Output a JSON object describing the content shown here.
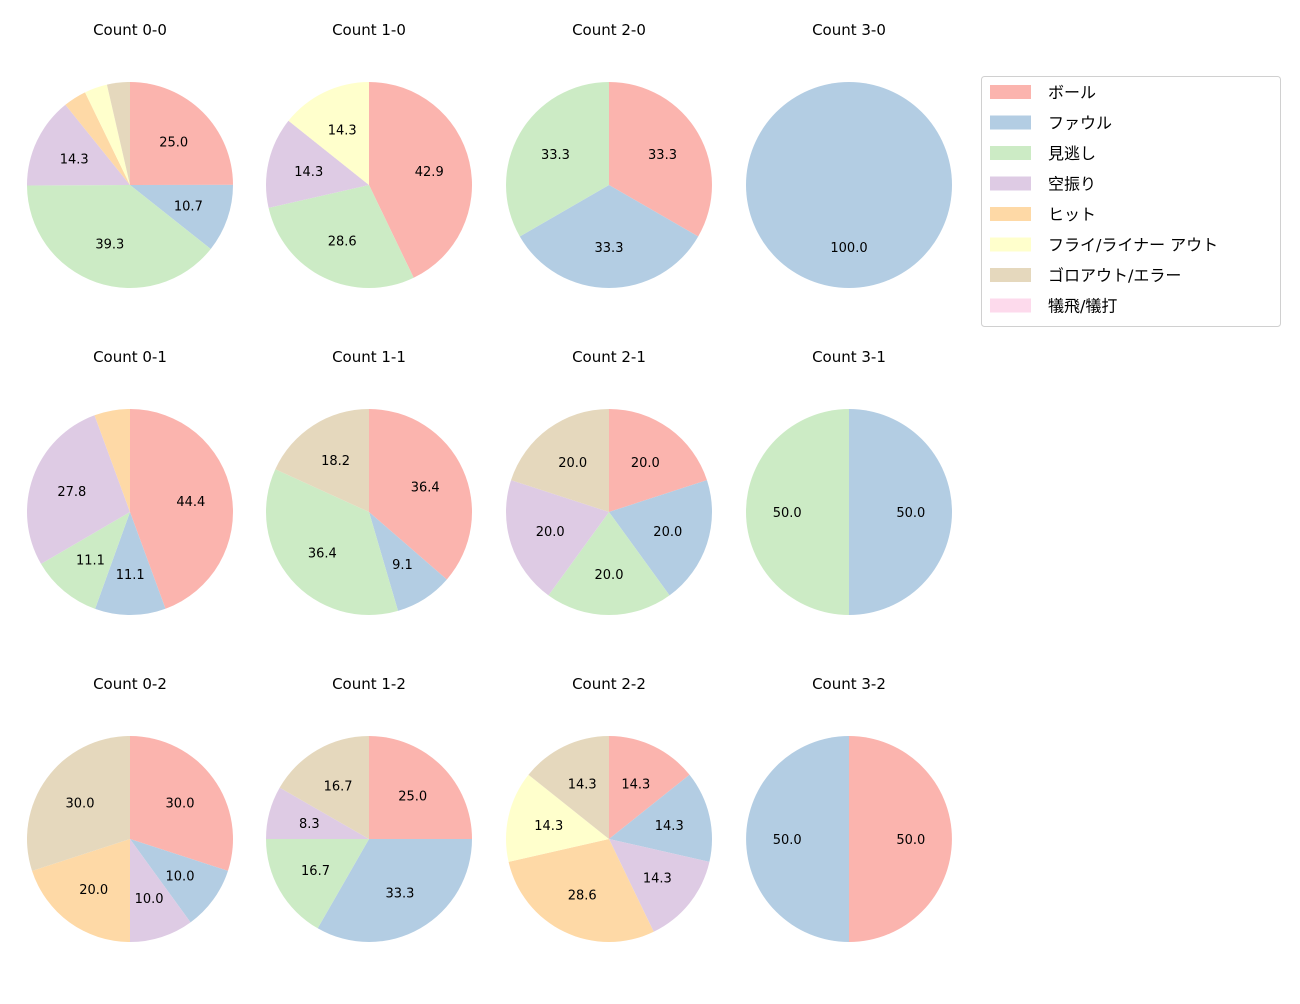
{
  "chart_data": {
    "type": "pie",
    "start_angle": 90,
    "direction": "clockwise",
    "legend": {
      "placement": "top-right",
      "entries": [
        "ボール",
        "ファウル",
        "見逃し",
        "空振り",
        "ヒット",
        "フライ/ライナー アウト",
        "ゴロアウト/エラー",
        "犠飛/犠打"
      ],
      "colors": [
        "#fbb4ae",
        "#b3cde3",
        "#ccebc5",
        "#decbe4",
        "#fed9a6",
        "#ffffcc",
        "#e5d8bd",
        "#fddaec"
      ]
    },
    "charts": [
      {
        "title": "Count 0-0",
        "values": [
          25.0,
          10.7,
          39.3,
          14.3,
          3.6,
          3.6,
          3.6,
          0
        ]
      },
      {
        "title": "Count 1-0",
        "values": [
          42.9,
          0,
          28.6,
          14.3,
          0,
          14.3,
          0,
          0
        ]
      },
      {
        "title": "Count 2-0",
        "values": [
          33.3,
          33.3,
          33.3,
          0,
          0,
          0,
          0,
          0
        ]
      },
      {
        "title": "Count 3-0",
        "values": [
          0,
          100.0,
          0,
          0,
          0,
          0,
          0,
          0
        ]
      },
      {
        "title": "Count 0-1",
        "values": [
          44.4,
          11.1,
          11.1,
          27.8,
          5.6,
          0,
          0,
          0
        ]
      },
      {
        "title": "Count 1-1",
        "values": [
          36.4,
          9.1,
          36.4,
          0,
          0,
          0,
          18.2,
          0
        ]
      },
      {
        "title": "Count 2-1",
        "values": [
          20.0,
          20.0,
          20.0,
          20.0,
          0,
          0,
          20.0,
          0
        ]
      },
      {
        "title": "Count 3-1",
        "values": [
          0,
          50.0,
          50.0,
          0,
          0,
          0,
          0,
          0
        ]
      },
      {
        "title": "Count 0-2",
        "values": [
          30.0,
          10.0,
          0,
          10.0,
          20.0,
          0,
          30.0,
          0
        ]
      },
      {
        "title": "Count 1-2",
        "values": [
          25.0,
          33.3,
          16.7,
          8.3,
          0,
          0,
          16.7,
          0
        ]
      },
      {
        "title": "Count 2-2",
        "values": [
          14.3,
          14.3,
          0,
          14.3,
          28.6,
          14.3,
          14.3,
          0
        ]
      },
      {
        "title": "Count 3-2",
        "values": [
          50.0,
          50.0,
          0,
          0,
          0,
          0,
          0,
          0
        ]
      }
    ]
  }
}
